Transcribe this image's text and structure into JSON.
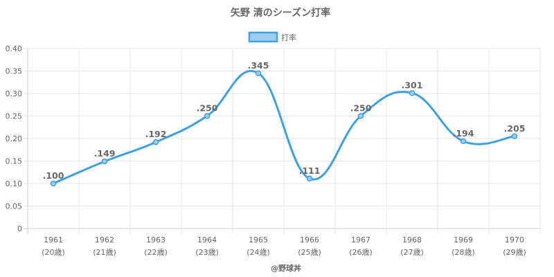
{
  "chart_data": {
    "type": "line",
    "title": "矢野 清のシーズン打率",
    "categories": [
      "1961",
      "1962",
      "1963",
      "1964",
      "1965",
      "1966",
      "1967",
      "1968",
      "1969",
      "1970"
    ],
    "age_labels": [
      "(20歳)",
      "(21歳)",
      "(22歳)",
      "(23歳)",
      "(24歳)",
      "(25歳)",
      "(26歳)",
      "(27歳)",
      "(28歳)",
      "(29歳)"
    ],
    "series": [
      {
        "name": "打率",
        "values": [
          0.1,
          0.149,
          0.192,
          0.25,
          0.345,
          0.111,
          0.25,
          0.301,
          0.194,
          0.205
        ],
        "data_labels": [
          ".100",
          ".149",
          ".192",
          ".250",
          ".345",
          ".111",
          ".250",
          ".301",
          ".194",
          ".205"
        ],
        "color": "#3da0e3",
        "fill": "#9fcdef"
      }
    ],
    "ylim": [
      0,
      0.4
    ],
    "yticks": [
      "0",
      "0.05",
      "0.10",
      "0.15",
      "0.20",
      "0.25",
      "0.30",
      "0.35",
      "0.40"
    ],
    "xlabel": "",
    "ylabel": "",
    "grid": true,
    "legend": "top-center"
  },
  "credit": "@野球丼",
  "colors": {
    "grid": "#e6e6e6",
    "axis": "#cccccc",
    "text": "#666666"
  }
}
